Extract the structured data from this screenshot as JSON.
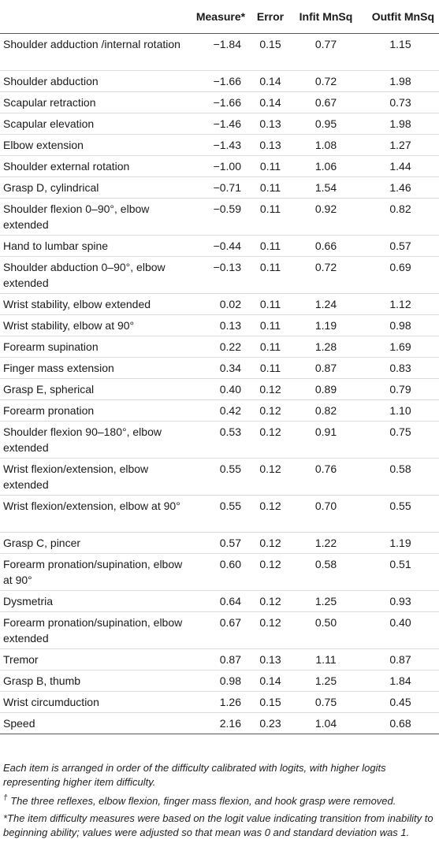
{
  "table": {
    "headers": {
      "item": "",
      "measure": "Measure*",
      "error": "Error",
      "infit": "Infit MnSq",
      "outfit": "Outfit MnSq"
    },
    "rows": [
      {
        "item": "Shoulder adduction /internal rotation",
        "measure": "−1.84",
        "error": "0.15",
        "infit": "0.77",
        "outfit": "1.15",
        "lines": 2
      },
      {
        "item": "Shoulder abduction",
        "measure": "−1.66",
        "error": "0.14",
        "infit": "0.72",
        "outfit": "1.98",
        "lines": 1
      },
      {
        "item": "Scapular retraction",
        "measure": "−1.66",
        "error": "0.14",
        "infit": "0.67",
        "outfit": "0.73",
        "lines": 1
      },
      {
        "item": "Scapular elevation",
        "measure": "−1.46",
        "error": "0.13",
        "infit": "0.95",
        "outfit": "1.98",
        "lines": 1
      },
      {
        "item": "Elbow extension",
        "measure": "−1.43",
        "error": "0.13",
        "infit": "1.08",
        "outfit": "1.27",
        "lines": 1
      },
      {
        "item": "Shoulder external rotation",
        "measure": "−1.00",
        "error": "0.11",
        "infit": "1.06",
        "outfit": "1.44",
        "lines": 1
      },
      {
        "item": "Grasp D, cylindrical",
        "measure": "−0.71",
        "error": "0.11",
        "infit": "1.54",
        "outfit": "1.46",
        "lines": 1
      },
      {
        "item": "Shoulder flexion 0–90°, elbow extended",
        "measure": "−0.59",
        "error": "0.11",
        "infit": "0.92",
        "outfit": "0.82",
        "lines": 2
      },
      {
        "item": "Hand to lumbar spine",
        "measure": "−0.44",
        "error": "0.11",
        "infit": "0.66",
        "outfit": "0.57",
        "lines": 1
      },
      {
        "item": "Shoulder abduction 0–90°, elbow extended",
        "measure": "−0.13",
        "error": "0.11",
        "infit": "0.72",
        "outfit": "0.69",
        "lines": 2
      },
      {
        "item": "Wrist stability, elbow extended",
        "measure": "0.02",
        "error": "0.11",
        "infit": "1.24",
        "outfit": "1.12",
        "lines": 1
      },
      {
        "item": "Wrist stability, elbow at 90°",
        "measure": "0.13",
        "error": "0.11",
        "infit": "1.19",
        "outfit": "0.98",
        "lines": 1
      },
      {
        "item": "Forearm supination",
        "measure": "0.22",
        "error": "0.11",
        "infit": "1.28",
        "outfit": "1.69",
        "lines": 1
      },
      {
        "item": "Finger mass extension",
        "measure": "0.34",
        "error": "0.11",
        "infit": "0.87",
        "outfit": "0.83",
        "lines": 1
      },
      {
        "item": "Grasp E, spherical",
        "measure": "0.40",
        "error": "0.12",
        "infit": "0.89",
        "outfit": "0.79",
        "lines": 1
      },
      {
        "item": "Forearm pronation",
        "measure": "0.42",
        "error": "0.12",
        "infit": "0.82",
        "outfit": "1.10",
        "lines": 1
      },
      {
        "item": "Shoulder flexion 90–180°, elbow extended",
        "measure": "0.53",
        "error": "0.12",
        "infit": "0.91",
        "outfit": "0.75",
        "lines": 2
      },
      {
        "item": "Wrist flexion/extension, elbow extended",
        "measure": "0.55",
        "error": "0.12",
        "infit": "0.76",
        "outfit": "0.58",
        "lines": 2
      },
      {
        "item": "Wrist flexion/extension, elbow at 90°",
        "measure": "0.55",
        "error": "0.12",
        "infit": "0.70",
        "outfit": "0.55",
        "lines": 2
      },
      {
        "item": "Grasp C, pincer",
        "measure": "0.57",
        "error": "0.12",
        "infit": "1.22",
        "outfit": "1.19",
        "lines": 1
      },
      {
        "item": "Forearm pronation/supination, elbow at 90°",
        "measure": "0.60",
        "error": "0.12",
        "infit": "0.58",
        "outfit": "0.51",
        "lines": 2
      },
      {
        "item": "Dysmetria",
        "measure": "0.64",
        "error": "0.12",
        "infit": "1.25",
        "outfit": "0.93",
        "lines": 1
      },
      {
        "item": "Forearm pronation/supination, elbow extended",
        "measure": "0.67",
        "error": "0.12",
        "infit": "0.50",
        "outfit": "0.40",
        "lines": 2
      },
      {
        "item": "Tremor",
        "measure": "0.87",
        "error": "0.13",
        "infit": "1.11",
        "outfit": "0.87",
        "lines": 1
      },
      {
        "item": "Grasp B, thumb",
        "measure": "0.98",
        "error": "0.14",
        "infit": "1.25",
        "outfit": "1.84",
        "lines": 1
      },
      {
        "item": "Wrist circumduction",
        "measure": "1.26",
        "error": "0.15",
        "infit": "0.75",
        "outfit": "0.45",
        "lines": 1
      },
      {
        "item": "Speed",
        "measure": "2.16",
        "error": "0.23",
        "infit": "1.04",
        "outfit": "0.68",
        "lines": 1
      }
    ]
  },
  "footnotes": {
    "note1": "Each item is arranged in order of the difficulty calibrated with logits, with higher logits representing higher item difficulty.",
    "note2_marker": "†",
    "note2": "The three reflexes, elbow flexion, finger mass flexion, and hook grasp were removed.",
    "note3": "*The item difficulty measures were based on the logit value indicating transition from inability to beginning ability; values were adjusted so that mean was 0 and standard deviation was 1."
  }
}
